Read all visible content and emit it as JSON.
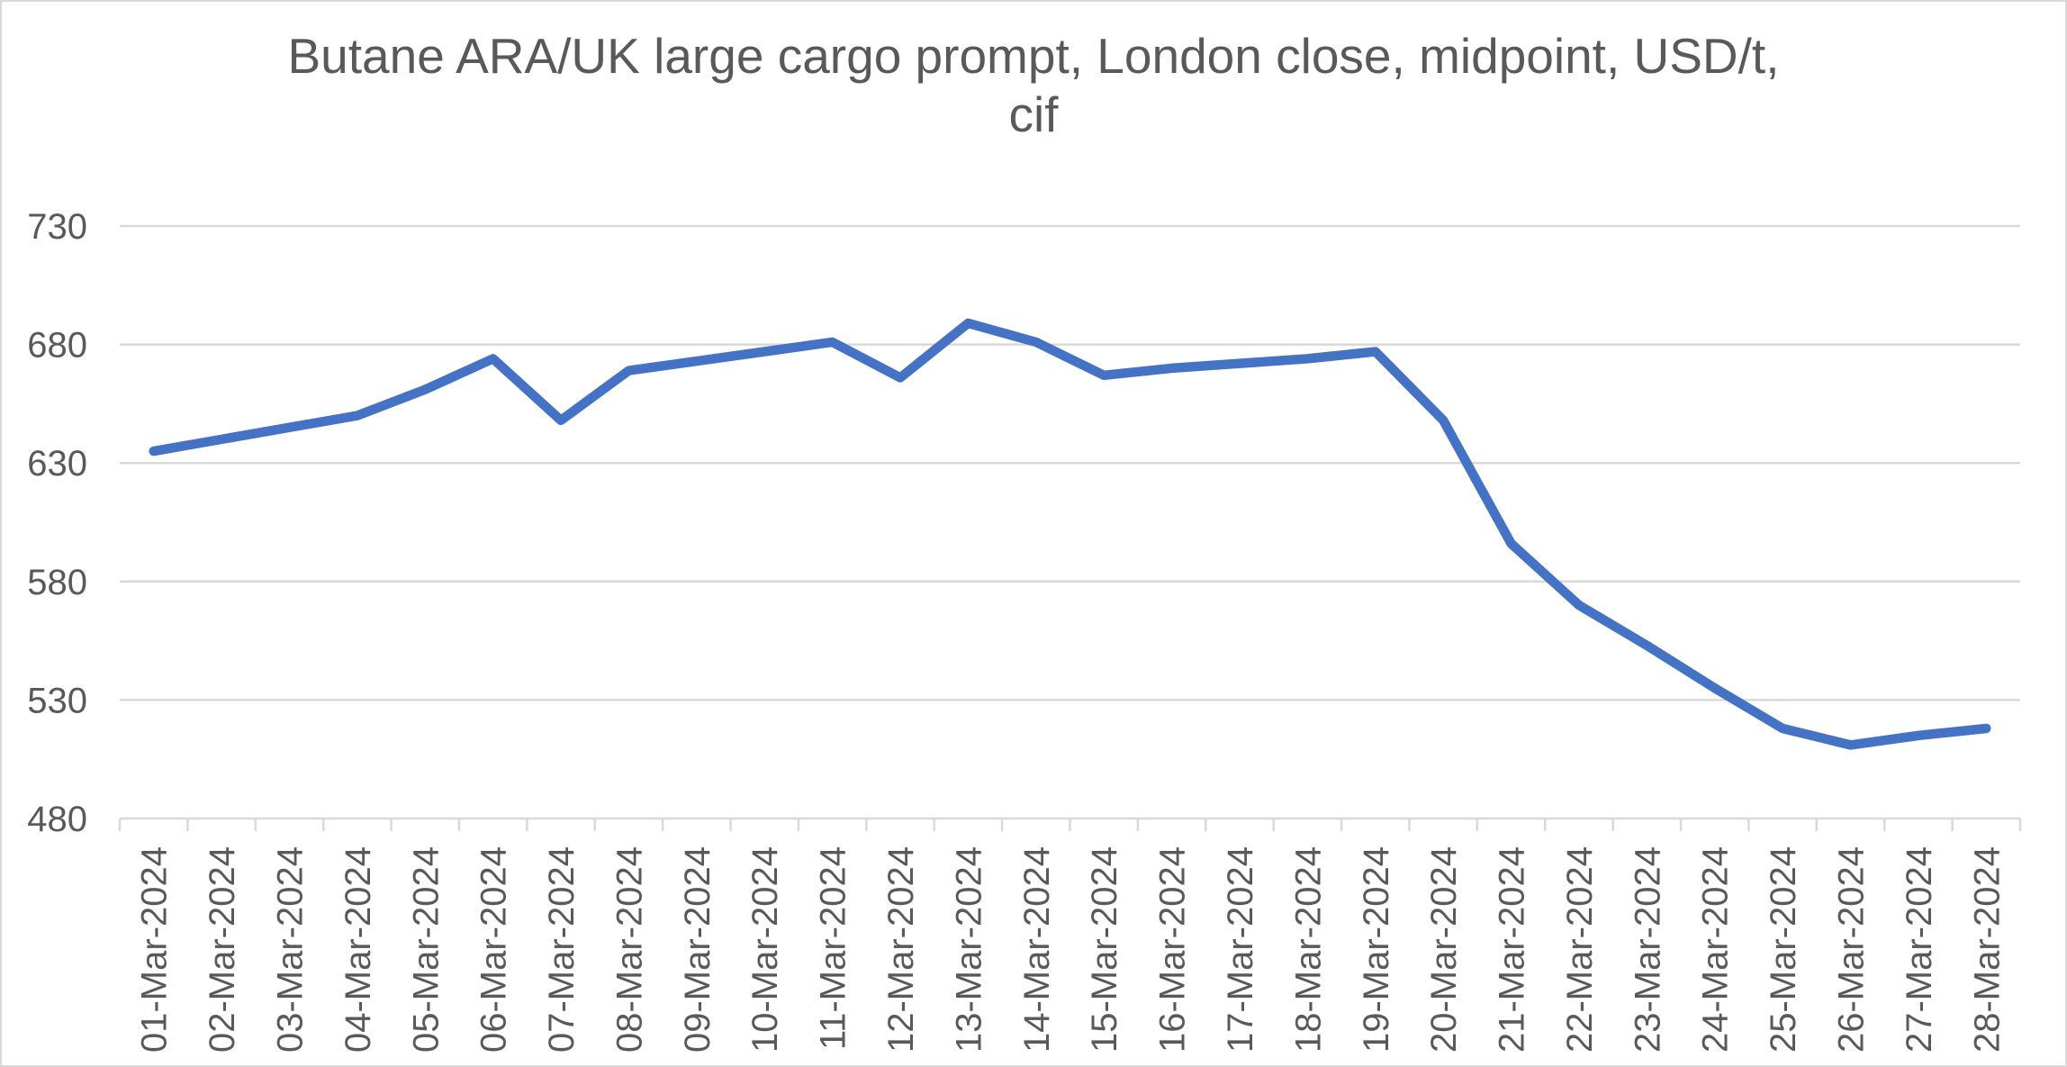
{
  "chart_data": {
    "type": "line",
    "title": "Butane ARA/UK large cargo prompt, London close, midpoint, USD/t, cif",
    "title_lines": [
      "Butane ARA/UK large cargo prompt, London close, midpoint, USD/t,",
      "cif"
    ],
    "categories": [
      "01-Mar-2024",
      "02-Mar-2024",
      "03-Mar-2024",
      "04-Mar-2024",
      "05-Mar-2024",
      "06-Mar-2024",
      "07-Mar-2024",
      "08-Mar-2024",
      "09-Mar-2024",
      "10-Mar-2024",
      "11-Mar-2024",
      "12-Mar-2024",
      "13-Mar-2024",
      "14-Mar-2024",
      "15-Mar-2024",
      "16-Mar-2024",
      "17-Mar-2024",
      "18-Mar-2024",
      "19-Mar-2024",
      "20-Mar-2024",
      "21-Mar-2024",
      "22-Mar-2024",
      "23-Mar-2024",
      "24-Mar-2024",
      "25-Mar-2024",
      "26-Mar-2024",
      "27-Mar-2024",
      "28-Mar-2024"
    ],
    "values": [
      635,
      640,
      645,
      650,
      661,
      674,
      648,
      669,
      673,
      677,
      681,
      666,
      689,
      681,
      667,
      670,
      672,
      674,
      677,
      648,
      596,
      570,
      553,
      535,
      518,
      511,
      515,
      518
    ],
    "ylim": [
      480,
      730
    ],
    "yticks": [
      480,
      530,
      580,
      630,
      680,
      730
    ],
    "xlabel": "",
    "ylabel": "",
    "grid": true,
    "legend": false,
    "legend_position": "none",
    "colors": {
      "line": "#4472C4",
      "grid": "#D9D9D9",
      "axis": "#D9D9D9",
      "text": "#595959",
      "border": "#D9D9D9",
      "background": "#FFFFFF"
    }
  }
}
